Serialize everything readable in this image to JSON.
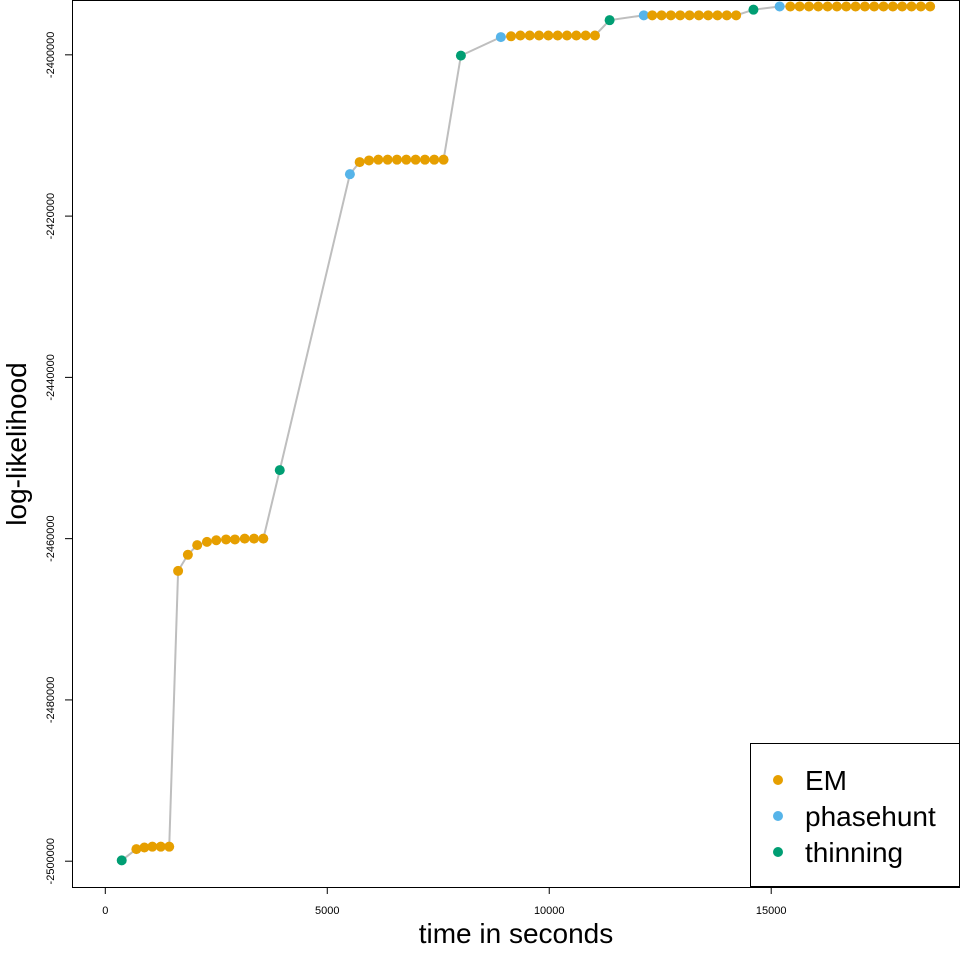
{
  "chart_data": {
    "type": "scatter",
    "title": "",
    "xlabel": "time in seconds",
    "ylabel": "log-likelihood",
    "xlim": [
      -750,
      19230
    ],
    "ylim": [
      -2503200,
      -2393200
    ],
    "x_ticks": [
      0,
      5000,
      10000,
      15000
    ],
    "y_ticks": [
      -2500000,
      -2480000,
      -2460000,
      -2440000,
      -2420000,
      -2400000
    ],
    "grid": false,
    "legend_position": "bottom-right",
    "connecting_line_color": "#BEBEBE",
    "series": [
      {
        "name": "EM",
        "color": "#E69F00",
        "points": [
          [
            700,
            -2498500
          ],
          [
            880,
            -2498300
          ],
          [
            1060,
            -2498200
          ],
          [
            1250,
            -2498200
          ],
          [
            1440,
            -2498200
          ],
          [
            1640,
            -2464000
          ],
          [
            1860,
            -2462000
          ],
          [
            2070,
            -2460800
          ],
          [
            2290,
            -2460400
          ],
          [
            2500,
            -2460200
          ],
          [
            2720,
            -2460100
          ],
          [
            2920,
            -2460100
          ],
          [
            3140,
            -2460000
          ],
          [
            3350,
            -2460000
          ],
          [
            3560,
            -2460000
          ],
          [
            5730,
            -2413300
          ],
          [
            5940,
            -2413100
          ],
          [
            6150,
            -2413000
          ],
          [
            6360,
            -2413000
          ],
          [
            6570,
            -2413000
          ],
          [
            6780,
            -2413000
          ],
          [
            6990,
            -2413000
          ],
          [
            7200,
            -2413000
          ],
          [
            7410,
            -2413000
          ],
          [
            7620,
            -2413000
          ],
          [
            9140,
            -2397700
          ],
          [
            9350,
            -2397600
          ],
          [
            9560,
            -2397600
          ],
          [
            9770,
            -2397600
          ],
          [
            9980,
            -2397600
          ],
          [
            10190,
            -2397600
          ],
          [
            10400,
            -2397600
          ],
          [
            10610,
            -2397600
          ],
          [
            10820,
            -2397600
          ],
          [
            11030,
            -2397600
          ],
          [
            12320,
            -2395100
          ],
          [
            12530,
            -2395100
          ],
          [
            12740,
            -2395100
          ],
          [
            12950,
            -2395100
          ],
          [
            13160,
            -2395100
          ],
          [
            13370,
            -2395100
          ],
          [
            13580,
            -2395100
          ],
          [
            13790,
            -2395100
          ],
          [
            14000,
            -2395100
          ],
          [
            14210,
            -2395100
          ],
          [
            15430,
            -2394000
          ],
          [
            15640,
            -2394000
          ],
          [
            15850,
            -2394000
          ],
          [
            16060,
            -2394000
          ],
          [
            16270,
            -2394000
          ],
          [
            16480,
            -2394000
          ],
          [
            16690,
            -2394000
          ],
          [
            16900,
            -2394000
          ],
          [
            17110,
            -2394000
          ],
          [
            17320,
            -2394000
          ],
          [
            17530,
            -2394000
          ],
          [
            17740,
            -2394000
          ],
          [
            17950,
            -2394000
          ],
          [
            18160,
            -2394000
          ],
          [
            18370,
            -2394000
          ],
          [
            18580,
            -2394000
          ]
        ]
      },
      {
        "name": "phasehunt",
        "color": "#56B4E9",
        "points": [
          [
            5510,
            -2414800
          ],
          [
            8910,
            -2397800
          ],
          [
            12130,
            -2395100
          ],
          [
            15190,
            -2394000
          ]
        ]
      },
      {
        "name": "thinning",
        "color": "#009E73",
        "points": [
          [
            370,
            -2499900
          ],
          [
            3930,
            -2451500
          ],
          [
            8010,
            -2400100
          ],
          [
            11360,
            -2395700
          ],
          [
            14600,
            -2394400
          ]
        ]
      }
    ]
  }
}
